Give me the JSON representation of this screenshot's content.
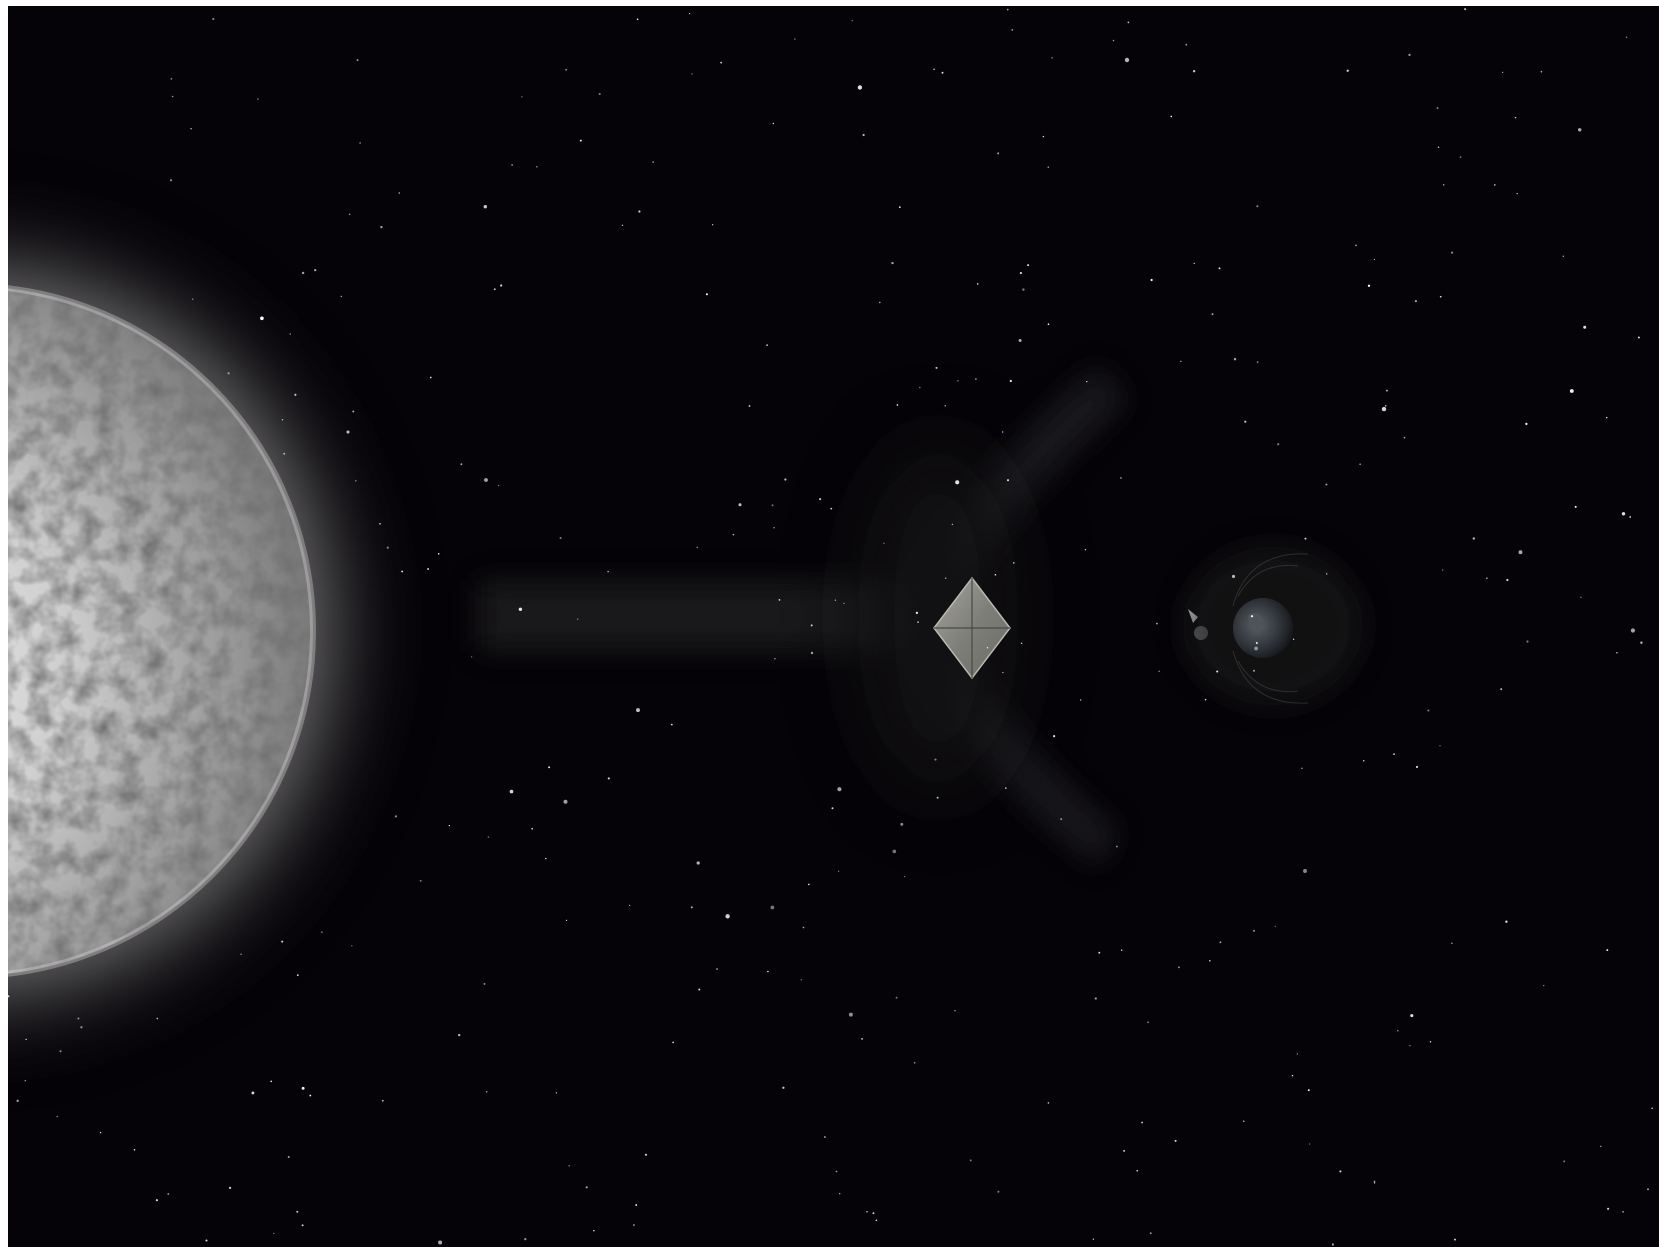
{
  "image": {
    "background_color": "#050307",
    "page_background_color": "#ffffff",
    "elements": {
      "sun": "sun",
      "solar_wind": "solar-wind-stream",
      "sail": "solar-sail-spacecraft",
      "planet": "earth",
      "moon": "moon",
      "small_craft": "small-spacecraft",
      "stars": "starfield"
    },
    "colors": {
      "sun_core": "#e8e8e8",
      "sun_edge": "#8a8a8a",
      "sun_glow": "#bdbdbd",
      "sail": "#8c8c86",
      "sail_edge": "#b8b8b0",
      "earth": "#3a3f45",
      "stream": "#2a2a2c",
      "star": "#ffffff"
    }
  }
}
